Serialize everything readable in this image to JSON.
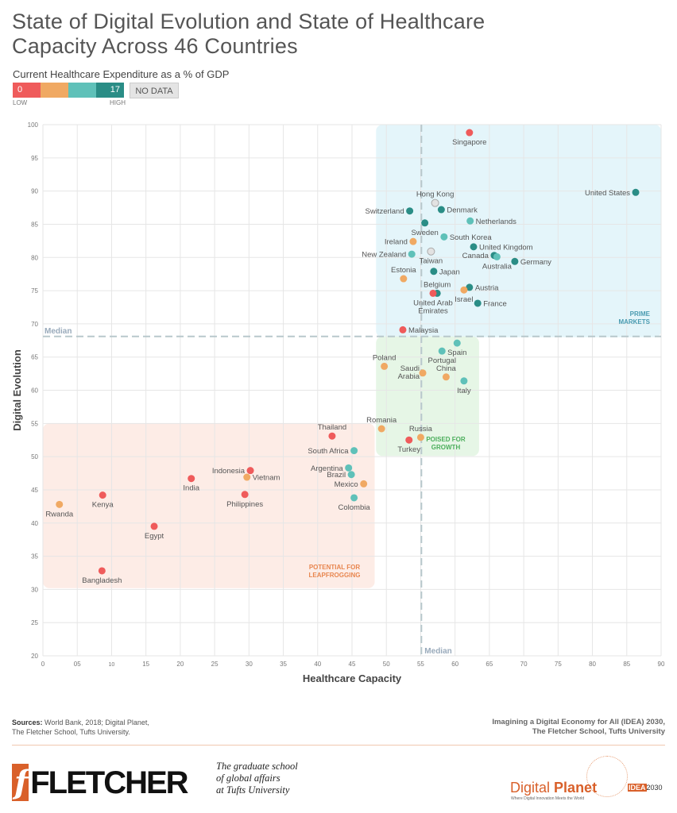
{
  "title_line1": "State of Digital Evolution and State of Healthcare",
  "title_line2": "Capacity Across 46 Countries",
  "legend": {
    "title": "Current Healthcare Expenditure as a % of GDP",
    "min_label": "0",
    "max_label": "17",
    "low": "LOW",
    "high": "HIGH",
    "no_data": "NO DATA",
    "colors": {
      "low": "#ef5b5b",
      "mid_low": "#f0a963",
      "mid_high": "#5fc1b9",
      "high": "#2a8d86",
      "no_data": "#e2e2e2"
    }
  },
  "chart_data": {
    "type": "scatter",
    "xlabel": "Healthcare Capacity",
    "ylabel": "Digital Evolution",
    "xlim": [
      0,
      90
    ],
    "ylim": [
      20,
      100
    ],
    "x_ticks": [
      "0",
      "05",
      "10",
      "15",
      "20",
      "25",
      "30",
      "35",
      "40",
      "45",
      "50",
      "55",
      "60",
      "65",
      "70",
      "75",
      "80",
      "85",
      "90"
    ],
    "y_ticks": [
      "20",
      "25",
      "30",
      "35",
      "40",
      "45",
      "50",
      "55",
      "60",
      "65",
      "70",
      "75",
      "80",
      "85",
      "90",
      "95",
      "100"
    ],
    "grid": true,
    "median": {
      "x": 55.1,
      "y": 68.1,
      "x_label": "Median",
      "y_label": "Median"
    },
    "regions": [
      {
        "label": "PRIME MARKETS",
        "color": "#e4f5fa"
      },
      {
        "label": "POISED FOR GROWTH",
        "color": "#e6f6e6"
      },
      {
        "label": "POTENTIAL FOR LEAPFROGGING",
        "color": "#fdece6"
      }
    ],
    "points": [
      {
        "name": "Singapore",
        "x": 62.1,
        "y": 98.8,
        "c": "low"
      },
      {
        "name": "United States",
        "x": 86.3,
        "y": 89.8,
        "c": "high"
      },
      {
        "name": "Hong Kong",
        "x": 57.1,
        "y": 88.2,
        "c": "no_data"
      },
      {
        "name": "Denmark",
        "x": 58.0,
        "y": 87.2,
        "c": "high"
      },
      {
        "name": "Switzerland",
        "x": 53.4,
        "y": 87.0,
        "c": "high"
      },
      {
        "name": "Netherlands",
        "x": 62.2,
        "y": 85.5,
        "c": "mid_high"
      },
      {
        "name": "Sweden",
        "x": 55.6,
        "y": 85.2,
        "c": "high"
      },
      {
        "name": "South Korea",
        "x": 58.4,
        "y": 83.1,
        "c": "mid_high"
      },
      {
        "name": "Ireland",
        "x": 53.9,
        "y": 82.4,
        "c": "mid_low"
      },
      {
        "name": "United Kingdom",
        "x": 62.7,
        "y": 81.6,
        "c": "high"
      },
      {
        "name": "New Zealand",
        "x": 53.7,
        "y": 80.5,
        "c": "mid_high"
      },
      {
        "name": "Taiwan",
        "x": 56.5,
        "y": 80.9,
        "c": "no_data"
      },
      {
        "name": "Canada",
        "x": 65.7,
        "y": 80.3,
        "c": "high"
      },
      {
        "name": "Australia",
        "x": 66.1,
        "y": 80.1,
        "c": "mid_high"
      },
      {
        "name": "Germany",
        "x": 68.7,
        "y": 79.4,
        "c": "high"
      },
      {
        "name": "Japan",
        "x": 56.9,
        "y": 77.9,
        "c": "high"
      },
      {
        "name": "Estonia",
        "x": 52.5,
        "y": 76.8,
        "c": "mid_low"
      },
      {
        "name": "Austria",
        "x": 62.1,
        "y": 75.5,
        "c": "high"
      },
      {
        "name": "Israel",
        "x": 61.3,
        "y": 75.1,
        "c": "mid_low"
      },
      {
        "name": "Belgium",
        "x": 57.4,
        "y": 74.6,
        "c": "high"
      },
      {
        "name": "United Arab Emirates",
        "x": 56.8,
        "y": 74.6,
        "c": "low"
      },
      {
        "name": "France",
        "x": 63.3,
        "y": 73.1,
        "c": "high"
      },
      {
        "name": "Malaysia",
        "x": 52.4,
        "y": 69.1,
        "c": "low"
      },
      {
        "name": "Spain",
        "x": 60.3,
        "y": 67.1,
        "c": "mid_high"
      },
      {
        "name": "Portugal",
        "x": 58.1,
        "y": 65.9,
        "c": "mid_high"
      },
      {
        "name": "Poland",
        "x": 49.7,
        "y": 63.6,
        "c": "mid_low"
      },
      {
        "name": "Saudi Arabia",
        "x": 55.3,
        "y": 62.6,
        "c": "mid_low"
      },
      {
        "name": "China",
        "x": 58.7,
        "y": 62.0,
        "c": "mid_low"
      },
      {
        "name": "Italy",
        "x": 61.3,
        "y": 61.4,
        "c": "mid_high"
      },
      {
        "name": "Romania",
        "x": 49.3,
        "y": 54.2,
        "c": "mid_low"
      },
      {
        "name": "Thailand",
        "x": 42.1,
        "y": 53.1,
        "c": "low"
      },
      {
        "name": "Russia",
        "x": 55.0,
        "y": 52.9,
        "c": "mid_low"
      },
      {
        "name": "Turkey",
        "x": 53.3,
        "y": 52.5,
        "c": "low"
      },
      {
        "name": "South Africa",
        "x": 45.3,
        "y": 50.9,
        "c": "mid_high"
      },
      {
        "name": "Argentina",
        "x": 44.5,
        "y": 48.3,
        "c": "mid_high"
      },
      {
        "name": "Indonesia",
        "x": 30.2,
        "y": 47.9,
        "c": "low"
      },
      {
        "name": "Brazil",
        "x": 44.9,
        "y": 47.3,
        "c": "mid_high"
      },
      {
        "name": "Vietnam",
        "x": 29.7,
        "y": 46.9,
        "c": "mid_low"
      },
      {
        "name": "India",
        "x": 21.6,
        "y": 46.7,
        "c": "low"
      },
      {
        "name": "Mexico",
        "x": 46.7,
        "y": 45.9,
        "c": "mid_low"
      },
      {
        "name": "Kenya",
        "x": 8.7,
        "y": 44.2,
        "c": "low"
      },
      {
        "name": "Philippines",
        "x": 29.4,
        "y": 44.3,
        "c": "low"
      },
      {
        "name": "Colombia",
        "x": 45.3,
        "y": 43.8,
        "c": "mid_high"
      },
      {
        "name": "Rwanda",
        "x": 2.4,
        "y": 42.8,
        "c": "mid_low"
      },
      {
        "name": "Egypt",
        "x": 16.2,
        "y": 39.5,
        "c": "low"
      },
      {
        "name": "Bangladesh",
        "x": 8.6,
        "y": 32.8,
        "c": "low"
      }
    ]
  },
  "footer": {
    "sources_label": "Sources:",
    "sources_text": "World Bank, 2018; Digital Planet,",
    "sources_text2": "The Fletcher School, Tufts University.",
    "imagining1": "Imagining a Digital Economy for All (IDEA) 2030,",
    "imagining2": "The Fletcher School, Tufts University",
    "fletcher_logo": "FLETCHER",
    "fletcher_mark": "f",
    "grad1": "The graduate school",
    "grad2": "of global affairs",
    "grad3": "at Tufts University",
    "dp_logo": "Digital",
    "dp_logo2": "Planet",
    "dp_tagline": "Where Digital Innovation Meets the World",
    "idea_logo": "IDEA",
    "idea_year": "2030"
  }
}
